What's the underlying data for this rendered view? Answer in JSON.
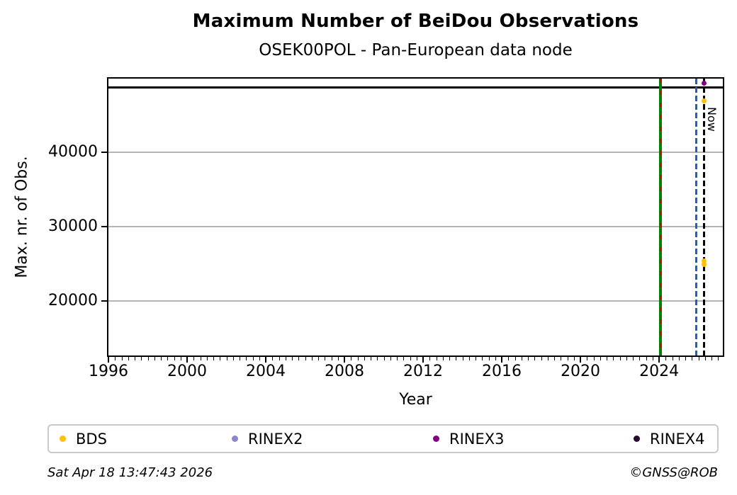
{
  "title": "Maximum Number of BeiDou Observations",
  "subtitle": "OSEK00POL - Pan-European data node",
  "footer": {
    "timestamp": "Sat Apr 18 13:47:43 2026",
    "credit": "©GNSS@ROB"
  },
  "legend": {
    "items": [
      {
        "label": "BDS",
        "color": "#ffc107"
      },
      {
        "label": "RINEX2",
        "color": "#8a87c8"
      },
      {
        "label": "RINEX3",
        "color": "#800080"
      },
      {
        "label": "RINEX4",
        "color": "#2a0a33"
      }
    ]
  },
  "chart_data": {
    "type": "scatter",
    "title": "Maximum Number of BeiDou Observations",
    "subtitle": "OSEK00POL - Pan-European data node",
    "xlabel": "Year",
    "ylabel": "Max. nr. of Obs.",
    "xlim": [
      1996,
      2027.24
    ],
    "ylim": [
      12700,
      49900
    ],
    "x_major_ticks": [
      1996,
      2000,
      2004,
      2008,
      2012,
      2016,
      2020,
      2024
    ],
    "x_minor_tick_step": 0.3333,
    "y_ticks": [
      20000,
      30000,
      40000
    ],
    "grid": "horizontal at y major ticks",
    "legend_position": "bottom",
    "hlines": [
      {
        "name": "max-observations-line",
        "y": 48700,
        "color": "#000000",
        "style": "solid"
      }
    ],
    "vlines": [
      {
        "name": "event-line-green",
        "x": 2024.08,
        "color": "#008000",
        "style": "solid"
      },
      {
        "name": "event-line-red-dashed",
        "x": 2024.08,
        "color": "#dd0000",
        "style": "dashed"
      },
      {
        "name": "event-line-blue-dashed",
        "x": 2025.9,
        "color": "#1565c0",
        "style": "dashed"
      },
      {
        "name": "now-line",
        "x": 2026.3,
        "color": "#000000",
        "style": "dashed",
        "label": "Now"
      }
    ],
    "now_label": "Now",
    "series": [
      {
        "name": "BDS",
        "color": "#ffc107",
        "points": [
          [
            2026.3,
            46950
          ],
          [
            2026.3,
            25430
          ],
          [
            2026.3,
            24900
          ]
        ]
      },
      {
        "name": "RINEX2",
        "color": "#8a87c8",
        "points": []
      },
      {
        "name": "RINEX3",
        "color": "#800080",
        "points": [
          [
            2026.3,
            49240
          ]
        ]
      },
      {
        "name": "RINEX4",
        "color": "#2a0a33",
        "points": []
      }
    ]
  }
}
